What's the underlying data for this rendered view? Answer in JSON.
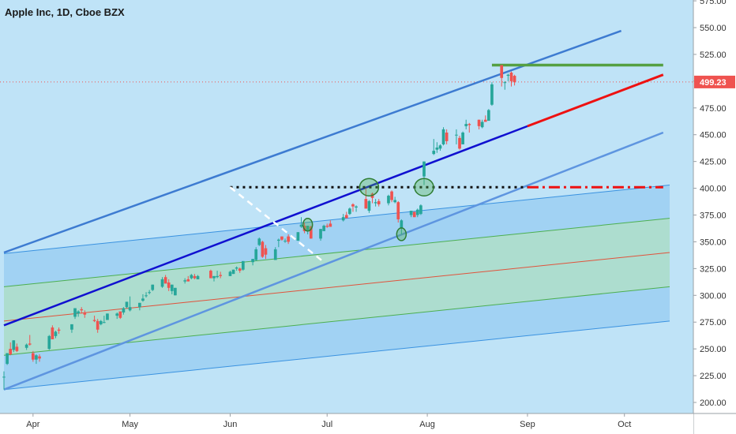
{
  "header": {
    "title": "Apple Inc, 1D, Cboe BZX"
  },
  "colors": {
    "background": "#bfe3f7",
    "axis_bg": "#ffffff",
    "up": "#26a69a",
    "down": "#ef5350",
    "price_badge": "#ef5350",
    "channel_line": "#3d7bd1",
    "support_line": "#1010d0",
    "projection_line": "#ee1111",
    "resistance_line": "#55a042",
    "pitch_fill_outer": "#9bcff2",
    "pitch_fill_inner": "#a9dcc8"
  },
  "chart_data": {
    "type": "candlestick",
    "symbol": "Apple Inc",
    "interval": "1D",
    "exchange": "Cboe BZX",
    "last_price": "499.23",
    "y_ticks": [
      "200.00",
      "225.00",
      "250.00",
      "275.00",
      "300.00",
      "325.00",
      "350.00",
      "375.00",
      "400.00",
      "425.00",
      "450.00",
      "475.00",
      "500.00",
      "525.00",
      "550.00",
      "575.00"
    ],
    "ylim": [
      195,
      578
    ],
    "x_ticks": [
      {
        "label": "Apr",
        "date": "2020-04-01"
      },
      {
        "label": "May",
        "date": "2020-05-01"
      },
      {
        "label": "Jun",
        "date": "2020-06-01"
      },
      {
        "label": "Jul",
        "date": "2020-07-01"
      },
      {
        "label": "Aug",
        "date": "2020-08-01"
      },
      {
        "label": "Sep",
        "date": "2020-09-01"
      },
      {
        "label": "Oct",
        "date": "2020-10-01"
      }
    ],
    "xlim": [
      "2020-03-23",
      "2020-10-15"
    ],
    "candles": [
      [
        "2020-03-23",
        224,
        229,
        212,
        224
      ],
      [
        "2020-03-24",
        236,
        246,
        235,
        246
      ],
      [
        "2020-03-25",
        250,
        256,
        244,
        245
      ],
      [
        "2020-03-26",
        249,
        258,
        247,
        258
      ],
      [
        "2020-03-27",
        252,
        255,
        247,
        248
      ],
      [
        "2020-03-30",
        251,
        255,
        249,
        254
      ],
      [
        "2020-03-31",
        255,
        263,
        253,
        254
      ],
      [
        "2020-04-01",
        246,
        248,
        238,
        240
      ],
      [
        "2020-04-02",
        240,
        245,
        236,
        244
      ],
      [
        "2020-04-03",
        243,
        245,
        238,
        241
      ],
      [
        "2020-04-06",
        250,
        263,
        249,
        262
      ],
      [
        "2020-04-07",
        270,
        272,
        259,
        259
      ],
      [
        "2020-04-08",
        262,
        267,
        260,
        266
      ],
      [
        "2020-04-09",
        268,
        270,
        264,
        267
      ],
      [
        "2020-04-13",
        268,
        273,
        265,
        273
      ],
      [
        "2020-04-14",
        280,
        288,
        278,
        288
      ],
      [
        "2020-04-15",
        283,
        286,
        280,
        285
      ],
      [
        "2020-04-16",
        287,
        289,
        283,
        286
      ],
      [
        "2020-04-17",
        284,
        286,
        279,
        282
      ],
      [
        "2020-04-20",
        277,
        281,
        275,
        276
      ],
      [
        "2020-04-21",
        276,
        278,
        265,
        268
      ],
      [
        "2020-04-22",
        273,
        277,
        272,
        276
      ],
      [
        "2020-04-23",
        275,
        281,
        274,
        275
      ],
      [
        "2020-04-24",
        277,
        283,
        277,
        283
      ],
      [
        "2020-04-27",
        281,
        284,
        278,
        283
      ],
      [
        "2020-04-28",
        285,
        285,
        278,
        279
      ],
      [
        "2020-04-29",
        284,
        289,
        282,
        288
      ],
      [
        "2020-04-30",
        289,
        294,
        288,
        294
      ],
      [
        "2020-05-01",
        286,
        299,
        285,
        289
      ],
      [
        "2020-05-04",
        289,
        293,
        286,
        293
      ],
      [
        "2020-05-05",
        295,
        301,
        294,
        297
      ],
      [
        "2020-05-06",
        300,
        303,
        298,
        300
      ],
      [
        "2020-05-07",
        303,
        305,
        301,
        303
      ],
      [
        "2020-05-08",
        305,
        310,
        304,
        310
      ],
      [
        "2020-05-11",
        308,
        317,
        307,
        315
      ],
      [
        "2020-05-12",
        317,
        319,
        311,
        311
      ],
      [
        "2020-05-13",
        312,
        315,
        304,
        307
      ],
      [
        "2020-05-14",
        304,
        310,
        301,
        310
      ],
      [
        "2020-05-15",
        300,
        307,
        300,
        307
      ],
      [
        "2020-05-18",
        313,
        316,
        311,
        314
      ],
      [
        "2020-05-19",
        315,
        318,
        313,
        313
      ],
      [
        "2020-05-20",
        316,
        320,
        315,
        319
      ],
      [
        "2020-05-21",
        318,
        320,
        315,
        316
      ],
      [
        "2020-05-22",
        315,
        319,
        315,
        318
      ],
      [
        "2020-05-26",
        323,
        324,
        316,
        316
      ],
      [
        "2020-05-27",
        316,
        318,
        313,
        318
      ],
      [
        "2020-05-28",
        317,
        323,
        316,
        318
      ],
      [
        "2020-05-29",
        319,
        322,
        316,
        318
      ],
      [
        "2020-06-01",
        318,
        323,
        318,
        322
      ],
      [
        "2020-06-02",
        320,
        324,
        320,
        324
      ],
      [
        "2020-06-03",
        325,
        327,
        323,
        326
      ],
      [
        "2020-06-04",
        325,
        326,
        321,
        323
      ],
      [
        "2020-06-05",
        324,
        332,
        323,
        332
      ],
      [
        "2020-06-08",
        331,
        334,
        328,
        334
      ],
      [
        "2020-06-09",
        333,
        345,
        332,
        343
      ],
      [
        "2020-06-10",
        347,
        354,
        346,
        353
      ],
      [
        "2020-06-11",
        350,
        351,
        335,
        336
      ],
      [
        "2020-06-12",
        344,
        347,
        334,
        338
      ],
      [
        "2020-06-15",
        333,
        345,
        333,
        343
      ],
      [
        "2020-06-16",
        351,
        353,
        345,
        352
      ],
      [
        "2020-06-17",
        355,
        355,
        351,
        352
      ],
      [
        "2020-06-18",
        351,
        353,
        349,
        351
      ],
      [
        "2020-06-19",
        355,
        357,
        348,
        350
      ],
      [
        "2020-06-22",
        351,
        359,
        351,
        359
      ],
      [
        "2020-06-23",
        364,
        373,
        363,
        366
      ],
      [
        "2020-06-24",
        365,
        368,
        358,
        360
      ],
      [
        "2020-06-25",
        361,
        365,
        357,
        365
      ],
      [
        "2020-06-26",
        364,
        365,
        353,
        353
      ],
      [
        "2020-06-29",
        353,
        362,
        351,
        362
      ],
      [
        "2020-06-30",
        360,
        366,
        360,
        365
      ],
      [
        "2020-07-01",
        365,
        367,
        363,
        364
      ],
      [
        "2020-07-02",
        367,
        370,
        364,
        364
      ],
      [
        "2020-07-06",
        370,
        376,
        369,
        373
      ],
      [
        "2020-07-07",
        375,
        378,
        372,
        372
      ],
      [
        "2020-07-08",
        376,
        382,
        375,
        381
      ],
      [
        "2020-07-09",
        385,
        386,
        378,
        383
      ],
      [
        "2020-07-10",
        382,
        384,
        378,
        383
      ],
      [
        "2020-07-13",
        390,
        400,
        381,
        381
      ],
      [
        "2020-07-14",
        379,
        389,
        377,
        388
      ],
      [
        "2020-07-15",
        395,
        396,
        386,
        391
      ],
      [
        "2020-07-16",
        386,
        390,
        383,
        387
      ],
      [
        "2020-07-17",
        388,
        390,
        383,
        385
      ],
      [
        "2020-07-20",
        386,
        394,
        384,
        393
      ],
      [
        "2020-07-21",
        397,
        398,
        387,
        389
      ],
      [
        "2020-07-22",
        387,
        392,
        386,
        389
      ],
      [
        "2020-07-23",
        387,
        388,
        368,
        371
      ],
      [
        "2020-07-24",
        363,
        371,
        357,
        370
      ],
      [
        "2020-07-27",
        375,
        379,
        373,
        379
      ],
      [
        "2020-07-28",
        378,
        378,
        373,
        373
      ],
      [
        "2020-07-29",
        375,
        381,
        373,
        380
      ],
      [
        "2020-07-30",
        376,
        385,
        375,
        384
      ],
      [
        "2020-07-31",
        411,
        425,
        403,
        425
      ],
      [
        "2020-08-03",
        432,
        446,
        431,
        435
      ],
      [
        "2020-08-04",
        436,
        443,
        433,
        438
      ],
      [
        "2020-08-05",
        437,
        441,
        435,
        440
      ],
      [
        "2020-08-06",
        441,
        457,
        440,
        455
      ],
      [
        "2020-08-07",
        452,
        455,
        441,
        444
      ],
      [
        "2020-08-10",
        450,
        455,
        441,
        450
      ],
      [
        "2020-08-11",
        447,
        449,
        436,
        437
      ],
      [
        "2020-08-12",
        441,
        453,
        441,
        452
      ],
      [
        "2020-08-13",
        458,
        464,
        455,
        460
      ],
      [
        "2020-08-14",
        460,
        461,
        452,
        459
      ],
      [
        "2020-08-17",
        464,
        464,
        455,
        458
      ],
      [
        "2020-08-18",
        457,
        464,
        456,
        462
      ],
      [
        "2020-08-19",
        464,
        468,
        462,
        462
      ],
      [
        "2020-08-20",
        463,
        474,
        463,
        473
      ],
      [
        "2020-08-21",
        478,
        499,
        477,
        497
      ],
      [
        "2020-08-24",
        515,
        515,
        495,
        503
      ],
      [
        "2020-08-25",
        499,
        500,
        492,
        499
      ],
      [
        "2020-08-26",
        505,
        507,
        500,
        506
      ],
      [
        "2020-08-27",
        508,
        509,
        495,
        500
      ],
      [
        "2020-08-28",
        505,
        506,
        496,
        499
      ]
    ],
    "annotations": [
      {
        "type": "trend_line",
        "name": "upper channel line",
        "from": [
          "2020-03-23",
          340
        ],
        "to": [
          "2020-09-30",
          547
        ]
      },
      {
        "type": "trend_line",
        "name": "mid channel line",
        "from": [
          "2020-03-23",
          272
        ],
        "to": [
          "2020-09-01",
          458
        ]
      },
      {
        "type": "trend_line",
        "name": "lower channel line",
        "from": [
          "2020-03-23",
          212
        ],
        "to": [
          "2020-10-13",
          452
        ]
      },
      {
        "type": "projection",
        "name": "projected support",
        "from": [
          "2020-09-01",
          458
        ],
        "to": [
          "2020-10-13",
          506
        ]
      },
      {
        "type": "horizontal",
        "name": "resistance top",
        "from": [
          "2020-08-21",
          515
        ],
        "to": [
          "2020-10-13",
          515
        ]
      },
      {
        "type": "dotted_level",
        "name": "breakout level",
        "from": [
          "2020-06-01",
          401
        ],
        "to": [
          "2020-09-01",
          401
        ]
      },
      {
        "type": "dashed_level",
        "name": "breakout level projection",
        "from": [
          "2020-09-01",
          401
        ],
        "to": [
          "2020-10-13",
          401
        ]
      },
      {
        "type": "pitchfork",
        "name": "pitchfork channel",
        "outer_upper": [
          [
            "2020-03-23",
            339
          ],
          [
            "2020-10-15",
            403
          ]
        ],
        "inner_upper": [
          [
            "2020-03-23",
            308
          ],
          [
            "2020-10-15",
            372
          ]
        ],
        "median": [
          [
            "2020-03-23",
            276
          ],
          [
            "2020-10-15",
            340
          ]
        ],
        "inner_lower": [
          [
            "2020-03-23",
            244
          ],
          [
            "2020-10-15",
            308
          ]
        ],
        "outer_lower": [
          [
            "2020-03-23",
            212
          ],
          [
            "2020-10-15",
            276
          ]
        ]
      },
      {
        "type": "white_dashed_line",
        "name": "wedge line",
        "from": [
          "2020-06-01",
          401
        ],
        "to": [
          "2020-06-30",
          331
        ]
      },
      {
        "type": "circle",
        "name": "test circle 1",
        "at": [
          "2020-06-25",
          366
        ]
      },
      {
        "type": "circle",
        "name": "test circle 2",
        "at": [
          "2020-07-14",
          401
        ]
      },
      {
        "type": "circle",
        "name": "test circle 3",
        "at": [
          "2020-07-24",
          357
        ]
      },
      {
        "type": "circle",
        "name": "test circle 4",
        "at": [
          "2020-07-31",
          401
        ]
      }
    ]
  }
}
